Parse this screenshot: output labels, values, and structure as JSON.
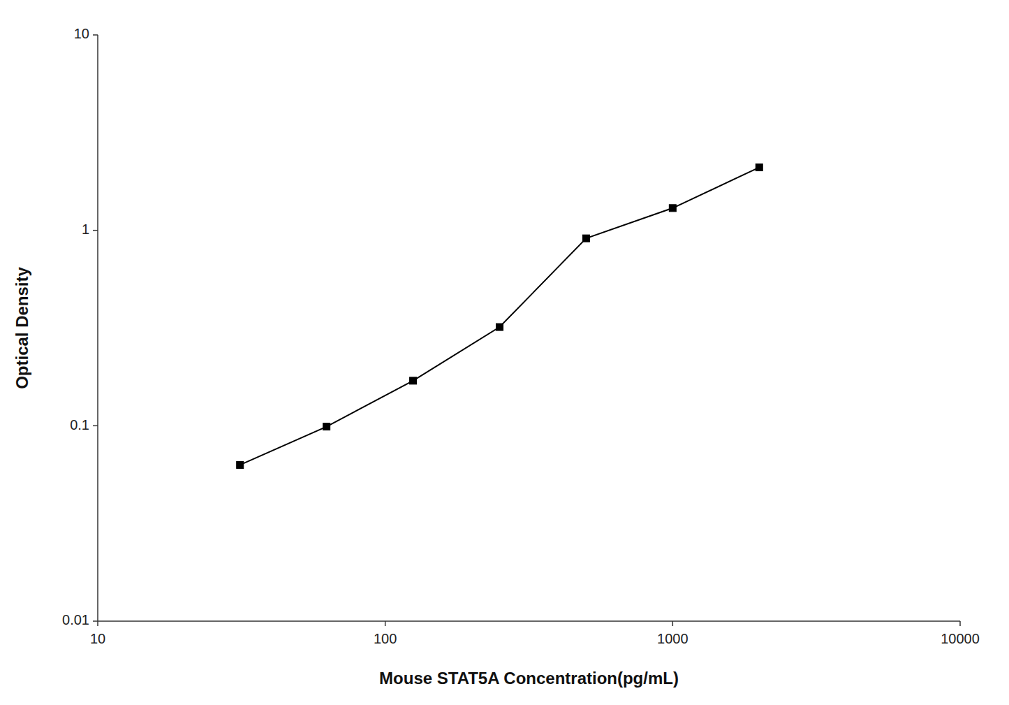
{
  "chart_data": {
    "type": "line",
    "x": [
      31.25,
      62.5,
      125,
      250,
      500,
      1000,
      2000
    ],
    "values": [
      0.063,
      0.099,
      0.17,
      0.32,
      0.91,
      1.3,
      2.1
    ],
    "xlabel": "Mouse STAT5A Concentration(pg/mL)",
    "ylabel": "Optical Density",
    "xlim": [
      10,
      10000
    ],
    "ylim": [
      0.01,
      10
    ],
    "xticks": [
      10,
      100,
      1000,
      10000
    ],
    "yticks": [
      0.01,
      0.1,
      1,
      10
    ],
    "log": true,
    "grid": false,
    "color": "#000000",
    "marker": "square"
  }
}
